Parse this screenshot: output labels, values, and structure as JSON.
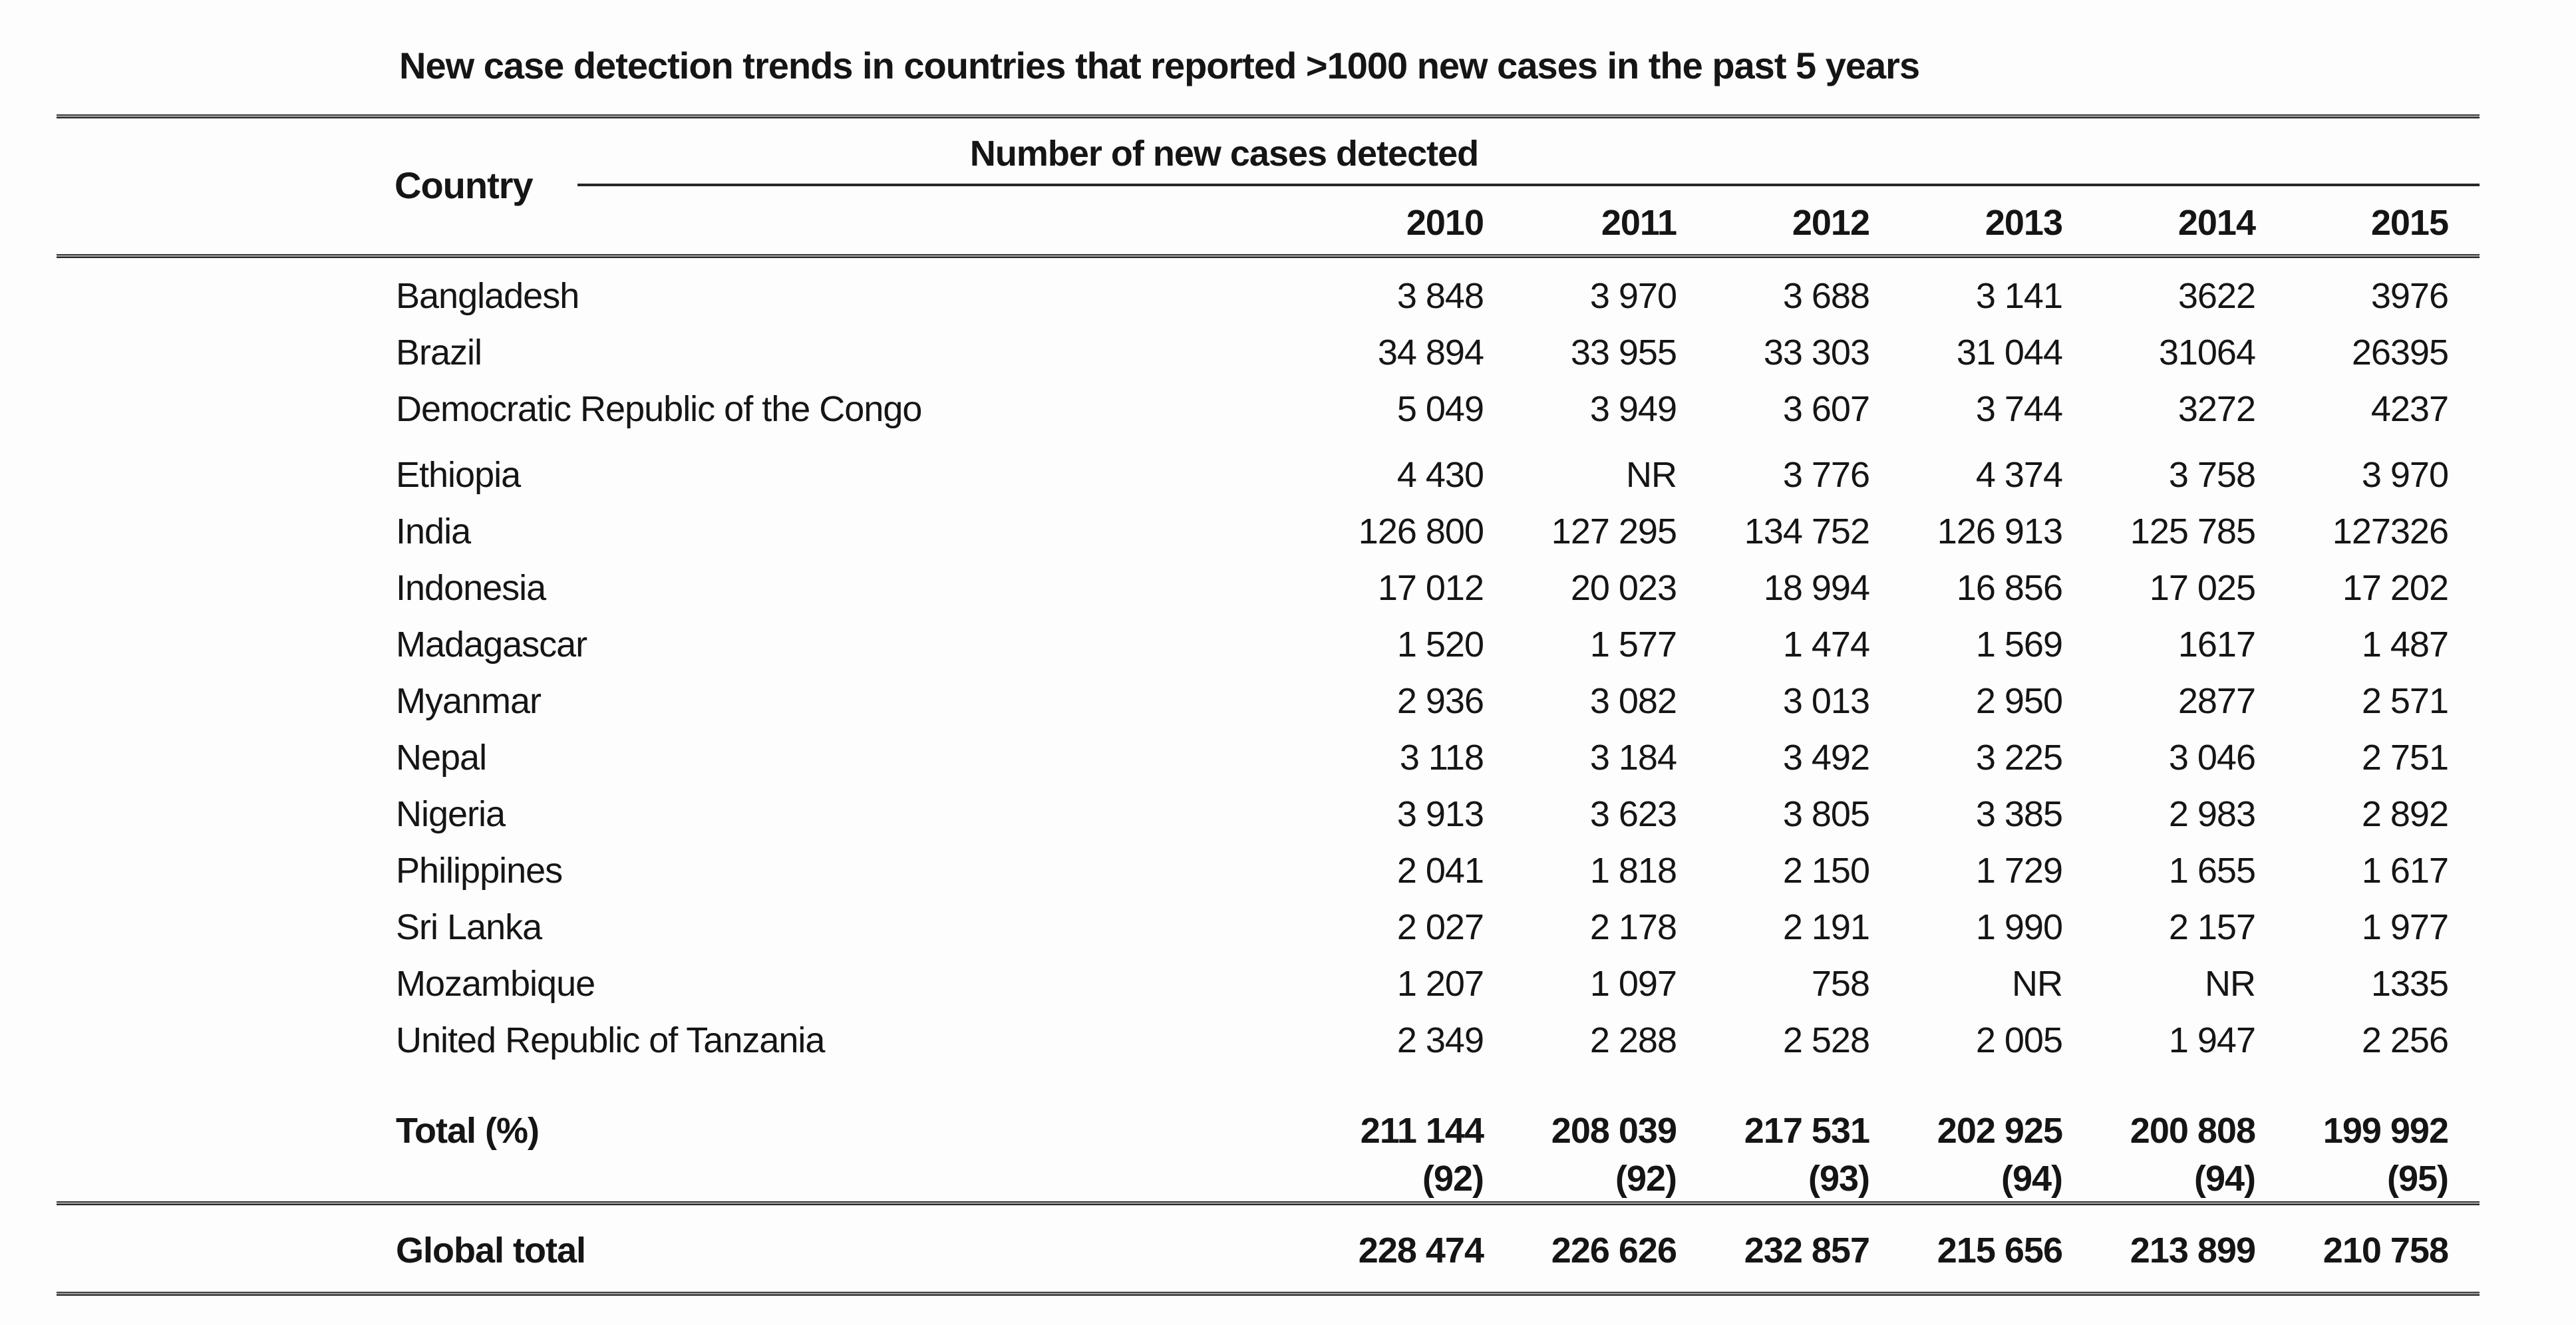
{
  "title": "New case detection trends in countries that reported >1000 new cases in the past 5 years",
  "table": {
    "country_header": "Country",
    "spanner_header": "Number of new cases detected",
    "years": [
      "2010",
      "2011",
      "2012",
      "2013",
      "2014",
      "2015"
    ],
    "rows": [
      {
        "country": "Bangladesh",
        "values": [
          "3 848",
          "3 970",
          "3 688",
          "3 141",
          "3622",
          "3976"
        ]
      },
      {
        "country": "Brazil",
        "values": [
          "34 894",
          "33 955",
          "33 303",
          "31 044",
          "31064",
          "26395"
        ]
      },
      {
        "country": "Democratic Republic of the Congo",
        "values": [
          "5 049",
          "3 949",
          "3 607",
          "3 744",
          "3272",
          "4237"
        ]
      },
      {
        "country": "Ethiopia",
        "values": [
          "4 430",
          "NR",
          "3 776",
          "4 374",
          "3 758",
          "3 970"
        ]
      },
      {
        "country": "India",
        "values": [
          "126 800",
          "127 295",
          "134 752",
          "126 913",
          "125 785",
          "127326"
        ]
      },
      {
        "country": "Indonesia",
        "values": [
          "17 012",
          "20 023",
          "18 994",
          "16 856",
          "17 025",
          "17 202"
        ]
      },
      {
        "country": "Madagascar",
        "values": [
          "1 520",
          "1 577",
          "1 474",
          "1 569",
          "1617",
          "1 487"
        ]
      },
      {
        "country": "Myanmar",
        "values": [
          "2 936",
          "3 082",
          "3 013",
          "2 950",
          "2877",
          "2 571"
        ]
      },
      {
        "country": "Nepal",
        "values": [
          "3 118",
          "3 184",
          "3 492",
          "3 225",
          "3 046",
          "2 751"
        ]
      },
      {
        "country": "Nigeria",
        "values": [
          "3 913",
          "3 623",
          "3 805",
          "3 385",
          "2 983",
          "2 892"
        ]
      },
      {
        "country": "Philippines",
        "values": [
          "2 041",
          "1 818",
          "2 150",
          "1 729",
          "1 655",
          "1 617"
        ]
      },
      {
        "country": "Sri Lanka",
        "values": [
          "2 027",
          "2 178",
          "2 191",
          "1 990",
          "2 157",
          "1 977"
        ]
      },
      {
        "country": "Mozambique",
        "values": [
          "1 207",
          "1 097",
          "758",
          "NR",
          "NR",
          "1335"
        ]
      },
      {
        "country": "United Republic of Tanzania",
        "values": [
          "2 349",
          "2 288",
          "2 528",
          "2 005",
          "1 947",
          "2 256"
        ]
      }
    ],
    "total_row": {
      "label": "Total (%)",
      "values": [
        "211 144",
        "208 039",
        "217 531",
        "202 925",
        "200 808",
        "199 992"
      ],
      "percentages": [
        "(92)",
        "(92)",
        "(93)",
        "(94)",
        "(94)",
        "(95)"
      ]
    },
    "global_row": {
      "label": "Global total",
      "values": [
        "228 474",
        "226 626",
        "232 857",
        "215 656",
        "213 899",
        "210 758"
      ]
    }
  }
}
